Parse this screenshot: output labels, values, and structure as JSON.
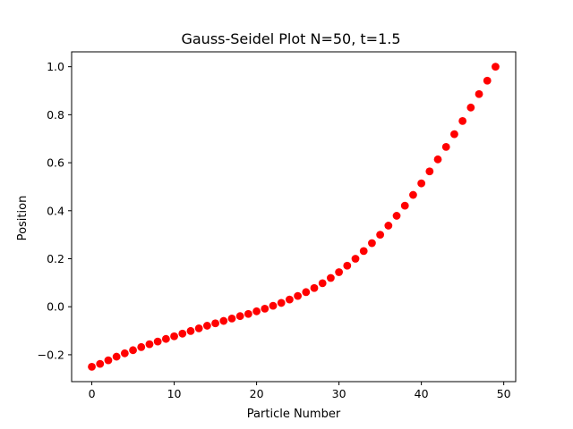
{
  "chart_data": {
    "type": "scatter",
    "title": "Gauss-Seidel Plot N=50, t=1.5",
    "xlabel": "Particle Number",
    "ylabel": "Position",
    "xlim": [
      -2.45,
      51.45
    ],
    "ylim": [
      -0.312,
      1.062
    ],
    "xticks": [
      0,
      10,
      20,
      30,
      40,
      50
    ],
    "xtick_labels": [
      "0",
      "10",
      "20",
      "30",
      "40",
      "50"
    ],
    "yticks": [
      -0.2,
      0.0,
      0.2,
      0.4,
      0.6,
      0.8,
      1.0
    ],
    "ytick_labels": [
      "−0.2",
      "0.0",
      "0.2",
      "0.4",
      "0.6",
      "0.8",
      "1.0"
    ],
    "grid": false,
    "marker_color": "#ff0000",
    "series": [
      {
        "x": [
          0,
          1,
          2,
          3,
          4,
          5,
          6,
          7,
          8,
          9,
          10,
          11,
          12,
          13,
          14,
          15,
          16,
          17,
          18,
          19,
          20,
          21,
          22,
          23,
          24,
          25,
          26,
          27,
          28,
          29,
          30,
          31,
          32,
          33,
          34,
          35,
          36,
          37,
          38,
          39,
          40,
          41,
          42,
          43,
          44,
          45,
          46,
          47,
          48,
          49
        ],
        "y": [
          -0.25,
          -0.238,
          -0.223,
          -0.208,
          -0.194,
          -0.181,
          -0.168,
          -0.156,
          -0.145,
          -0.134,
          -0.123,
          -0.112,
          -0.101,
          -0.09,
          -0.079,
          -0.069,
          -0.059,
          -0.049,
          -0.039,
          -0.03,
          -0.019,
          -0.008,
          0.004,
          0.016,
          0.03,
          0.045,
          0.061,
          0.078,
          0.098,
          0.12,
          0.144,
          0.171,
          0.2,
          0.232,
          0.265,
          0.3,
          0.338,
          0.379,
          0.421,
          0.466,
          0.514,
          0.564,
          0.614,
          0.666,
          0.719,
          0.774,
          0.83,
          0.886,
          0.942,
          1.0
        ]
      }
    ]
  }
}
